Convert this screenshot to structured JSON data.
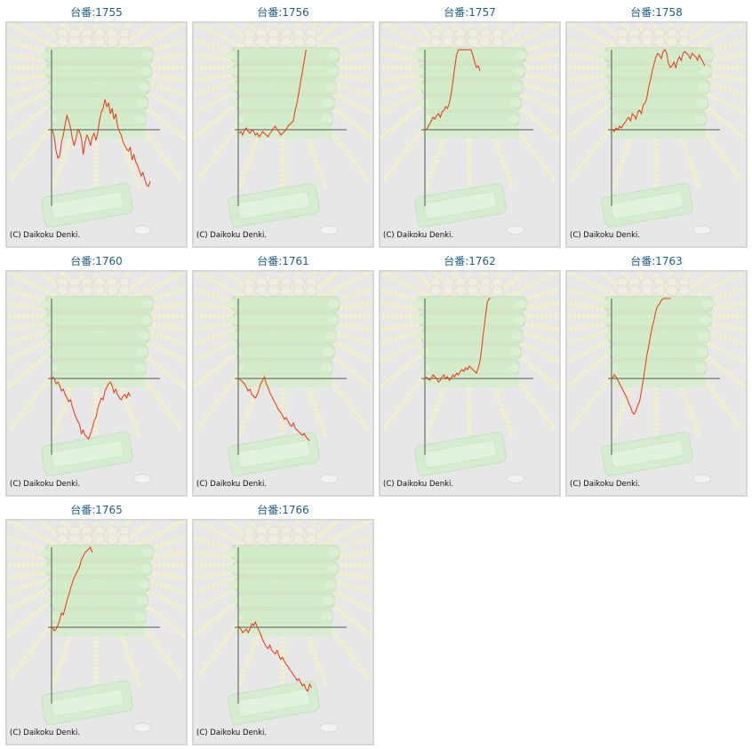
{
  "machines": [
    {
      "label": "台番:1755",
      "series": [
        0,
        -8,
        -24,
        -32,
        -30,
        -14,
        -6,
        6,
        16,
        10,
        2,
        -10,
        -18,
        -10,
        0,
        -2,
        -10,
        -28,
        -14,
        -6,
        -10,
        -18,
        -8,
        -4,
        -12,
        -4,
        10,
        20,
        24,
        34,
        26,
        30,
        18,
        24,
        12,
        18,
        4,
        -2,
        -6,
        -14,
        -18,
        -22,
        -24,
        -20,
        -34,
        -28,
        -36,
        -40,
        -46,
        -52,
        -48,
        -56,
        -62,
        -64,
        -58
      ]
    },
    {
      "label": "台番:1756",
      "series": [
        -4,
        -2,
        -6,
        0,
        2,
        -2,
        -4,
        0,
        -2,
        -6,
        -4,
        -8,
        -6,
        -2,
        -4,
        -6,
        -8,
        -4,
        -2,
        2,
        4,
        0,
        -2,
        -6,
        -4,
        -2,
        0,
        4,
        6,
        8,
        10,
        22,
        30,
        42,
        54,
        66,
        78,
        92
      ]
    },
    {
      "label": "台番:1757",
      "series": [
        0,
        2,
        6,
        10,
        14,
        12,
        16,
        18,
        14,
        20,
        22,
        26,
        24,
        30,
        40,
        54,
        70,
        84,
        98,
        110,
        122,
        130,
        128,
        118,
        106,
        96,
        84,
        76,
        70,
        72,
        66
      ]
    },
    {
      "label": "台番:1758",
      "series": [
        0,
        -2,
        2,
        0,
        4,
        2,
        6,
        8,
        12,
        14,
        10,
        18,
        16,
        12,
        20,
        22,
        18,
        28,
        30,
        36,
        48,
        56,
        66,
        74,
        82,
        86,
        84,
        80,
        88,
        90,
        86,
        74,
        70,
        72,
        76,
        70,
        78,
        82,
        78,
        86,
        88,
        86,
        84,
        80,
        86,
        84,
        82,
        78,
        84,
        80,
        76,
        72
      ]
    },
    {
      "label": "台番:1760",
      "series": [
        2,
        0,
        -6,
        -4,
        -8,
        -14,
        -12,
        -18,
        -22,
        -26,
        -24,
        -32,
        -38,
        -44,
        -48,
        -52,
        -62,
        -58,
        -64,
        -66,
        -68,
        -62,
        -56,
        -48,
        -44,
        -34,
        -28,
        -22,
        -24,
        -14,
        -10,
        -6,
        -4,
        -8,
        -16,
        -12,
        -18,
        -22,
        -24,
        -20,
        -18,
        -22,
        -16,
        -20
      ]
    },
    {
      "label": "台番:1761",
      "series": [
        0,
        -2,
        -4,
        -6,
        -10,
        -14,
        -12,
        -18,
        -20,
        -22,
        -18,
        -12,
        -6,
        -2,
        2,
        -6,
        -10,
        -16,
        -20,
        -24,
        -28,
        -32,
        -36,
        -38,
        -42,
        -46,
        -44,
        -48,
        -52,
        -54,
        -50,
        -56,
        -58,
        -60,
        -62,
        -64,
        -62,
        -66,
        -68,
        -70
      ]
    },
    {
      "label": "台番:1762",
      "series": [
        2,
        0,
        -2,
        0,
        4,
        2,
        0,
        -4,
        -2,
        2,
        4,
        0,
        2,
        -2,
        0,
        4,
        2,
        6,
        4,
        8,
        10,
        8,
        12,
        10,
        14,
        12,
        10,
        8,
        6,
        12,
        20,
        36,
        54,
        70,
        86,
        98,
        110
      ]
    },
    {
      "label": "台番:1763",
      "series": [
        0,
        4,
        2,
        -2,
        -6,
        -10,
        -14,
        -18,
        -22,
        -28,
        -32,
        -38,
        -40,
        -36,
        -30,
        -26,
        -14,
        -2,
        12,
        26,
        36,
        48,
        58,
        66,
        76,
        82,
        84,
        88,
        92,
        96,
        102,
        106,
        110
      ]
    },
    {
      "label": "台番:1765",
      "series": [
        0,
        -4,
        -2,
        2,
        8,
        16,
        14,
        22,
        30,
        36,
        44,
        50,
        56,
        60,
        64,
        68,
        76,
        80,
        84,
        86,
        88,
        90,
        84
      ]
    },
    {
      "label": "台番:1766",
      "series": [
        0,
        -2,
        -6,
        -4,
        -2,
        -6,
        -2,
        4,
        2,
        6,
        0,
        -4,
        -8,
        -14,
        -18,
        -22,
        -24,
        -20,
        -26,
        -28,
        -30,
        -26,
        -32,
        -36,
        -34,
        -38,
        -42,
        -44,
        -48,
        -50,
        -54,
        -56,
        -60,
        -58,
        -62,
        -66,
        -64,
        -70,
        -72,
        -64,
        -68
      ]
    }
  ],
  "copyright": "(C) Daikoku Denki.",
  "colors": {
    "line": "#ee3311",
    "title": "#1f5f8b",
    "panel_bg": "#e7e7e7"
  }
}
